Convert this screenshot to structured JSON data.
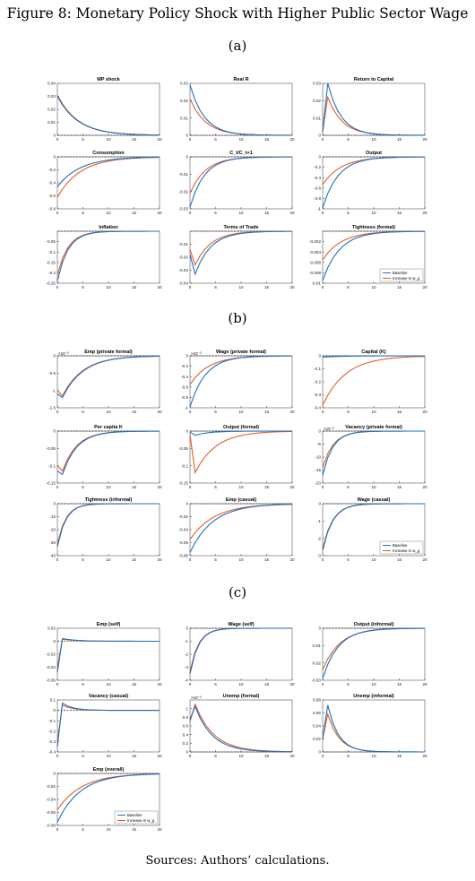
{
  "figure_title": "Figure 8: Monetary Policy Shock with Higher Public Sector Wage",
  "sources": "Sources: Authors’ calculations.",
  "colors": {
    "baseline": "#1f6fbf",
    "increase": "#e0602a",
    "axis": "#333333",
    "zero": "#000000"
  },
  "legend": {
    "baseline": "Baseline",
    "increase": "Increase in w_g"
  },
  "panels": [
    {
      "label": "(a)",
      "charts": [
        {
          "title": "MP shock",
          "ylim": [
            0,
            0.04
          ],
          "yticks": [
            "0",
            "0.01",
            "0.02",
            "0.03",
            "0.04"
          ],
          "exp": "",
          "base": {
            "type": "decay",
            "v0": 0.03,
            "r": 0.78,
            "peak": null
          },
          "inc": {
            "type": "decay",
            "v0": 0.031,
            "r": 0.78,
            "peak": null
          }
        },
        {
          "title": "Real R",
          "ylim": [
            0,
            0.03
          ],
          "yticks": [
            "0",
            "0.01",
            "0.02",
            "0.03"
          ],
          "exp": "",
          "base": {
            "type": "decay",
            "v0": 0.029,
            "r": 0.7,
            "peak": null
          },
          "inc": {
            "type": "decay",
            "v0": 0.021,
            "r": 0.72,
            "peak": null
          }
        },
        {
          "title": "Return to Capital",
          "ylim": [
            0,
            0.03
          ],
          "yticks": [
            "0",
            "0.01",
            "0.02",
            "0.03"
          ],
          "exp": "",
          "base": {
            "type": "hump",
            "v0": 0.002,
            "peak": 0.03,
            "r": 0.68
          },
          "inc": {
            "type": "hump",
            "v0": 0.002,
            "peak": 0.022,
            "r": 0.7
          }
        },
        {
          "title": "Consumption",
          "ylim": [
            -0.8,
            0
          ],
          "yticks": [
            "-0.8",
            "-0.6",
            "-0.4",
            "-0.2",
            "0"
          ],
          "exp": "",
          "base": {
            "type": "decay",
            "v0": -0.46,
            "r": 0.8,
            "peak": null
          },
          "inc": {
            "type": "decay",
            "v0": -0.62,
            "r": 0.8,
            "peak": null
          }
        },
        {
          "title": "C_t/C_t+1",
          "ylim": [
            -0.03,
            0
          ],
          "yticks": [
            "-0.03",
            "-0.02",
            "-0.01",
            "0"
          ],
          "exp": "",
          "base": {
            "type": "decay",
            "v0": -0.029,
            "r": 0.7,
            "peak": null
          },
          "inc": {
            "type": "decay",
            "v0": -0.021,
            "r": 0.72,
            "peak": null
          }
        },
        {
          "title": "Output",
          "ylim": [
            -1,
            0
          ],
          "yticks": [
            "-1",
            "-0.8",
            "-0.6",
            "-0.4",
            "-0.2",
            "0"
          ],
          "exp": "",
          "base": {
            "type": "decay",
            "v0": -0.98,
            "r": 0.72,
            "peak": null
          },
          "inc": {
            "type": "decay",
            "v0": -0.53,
            "r": 0.76,
            "peak": null
          }
        },
        {
          "title": "Inflation",
          "ylim": [
            -0.25,
            0
          ],
          "yticks": [
            "-0.25",
            "-0.2",
            "-0.15",
            "-0.1",
            "-0.05"
          ],
          "exp": "",
          "base": {
            "type": "decay",
            "v0": -0.24,
            "r": 0.62,
            "peak": null
          },
          "inc": {
            "type": "decay",
            "v0": -0.21,
            "r": 0.62,
            "peak": null
          }
        },
        {
          "title": "Terms of Trade",
          "ylim": [
            -0.04,
            0
          ],
          "yticks": [
            "-0.04",
            "-0.03",
            "-0.02",
            "-0.01"
          ],
          "exp": "",
          "base": {
            "type": "hump",
            "v0": -0.018,
            "peak": -0.033,
            "r": 0.72
          },
          "inc": {
            "type": "hump",
            "v0": -0.014,
            "peak": -0.026,
            "r": 0.72
          }
        },
        {
          "title": "Tightness (formal)",
          "ylim": [
            -0.01,
            0
          ],
          "yticks": [
            "-0.01",
            "-0.008",
            "-0.006",
            "-0.004",
            "-0.002"
          ],
          "exp": "",
          "legend": "bottom-right",
          "base": {
            "type": "decay",
            "v0": -0.0095,
            "r": 0.74,
            "peak": null
          },
          "inc": {
            "type": "decay",
            "v0": -0.0055,
            "r": 0.76,
            "peak": null
          }
        }
      ]
    },
    {
      "label": "(b)",
      "charts": [
        {
          "title": "Emp (private formal)",
          "ylim": [
            -1.5,
            0
          ],
          "yticks": [
            "-1.5",
            "-1",
            "-0.5",
            "0"
          ],
          "exp": "×10⁻³",
          "base": {
            "type": "hump",
            "v0": -1.1,
            "peak": -1.2,
            "r": 0.78
          },
          "inc": {
            "type": "hump",
            "v0": -1.0,
            "peak": -1.15,
            "r": 0.78
          }
        },
        {
          "title": "Wage (private formal)",
          "ylim": [
            -1,
            0
          ],
          "yticks": [
            "-1",
            "-0.8",
            "-0.6",
            "-0.4",
            "-0.2",
            "0"
          ],
          "exp": "×10⁻³",
          "base": {
            "type": "decay",
            "v0": -0.98,
            "r": 0.72,
            "peak": null
          },
          "inc": {
            "type": "decay",
            "v0": -0.55,
            "r": 0.76,
            "peak": null
          }
        },
        {
          "title": "Capital (K)",
          "ylim": [
            -0.4,
            0
          ],
          "yticks": [
            "-0.4",
            "-0.3",
            "-0.2",
            "-0.1",
            "0"
          ],
          "exp": "",
          "base": {
            "type": "decay",
            "v0": -0.01,
            "r": 0.8,
            "peak": null
          },
          "inc": {
            "type": "decay",
            "v0": -0.38,
            "r": 0.8,
            "peak": null
          }
        },
        {
          "title": "Per capita K",
          "ylim": [
            -0.15,
            0
          ],
          "yticks": [
            "-0.15",
            "-0.1",
            "-0.05",
            "0"
          ],
          "exp": "",
          "base": {
            "type": "hump",
            "v0": -0.115,
            "peak": -0.125,
            "r": 0.7
          },
          "inc": {
            "type": "hump",
            "v0": -0.1,
            "peak": -0.115,
            "r": 0.7
          }
        },
        {
          "title": "Output (formal)",
          "ylim": [
            -0.15,
            0
          ],
          "yticks": [
            "-0.15",
            "-0.1",
            "-0.05",
            "0"
          ],
          "exp": "",
          "base": {
            "type": "hump",
            "v0": -0.003,
            "peak": -0.012,
            "r": 0.7
          },
          "inc": {
            "type": "hump",
            "v0": -0.01,
            "peak": -0.12,
            "r": 0.78
          }
        },
        {
          "title": "Vacancy (private formal)",
          "ylim": [
            -20,
            0
          ],
          "yticks": [
            "-20",
            "-15",
            "-10",
            "-5",
            "0"
          ],
          "exp": "×10⁻³",
          "base": {
            "type": "decay",
            "v0": -17,
            "r": 0.6,
            "peak": null
          },
          "inc": {
            "type": "decay",
            "v0": -14,
            "r": 0.62,
            "peak": null
          }
        },
        {
          "title": "Tightness (informal)",
          "ylim": [
            -40,
            0
          ],
          "yticks": [
            "-40",
            "-30",
            "-20",
            "-10",
            "0"
          ],
          "exp": "",
          "base": {
            "type": "decay",
            "v0": -33,
            "r": 0.55,
            "peak": null
          },
          "inc": {
            "type": "decay",
            "v0": -31,
            "r": 0.55,
            "peak": null
          }
        },
        {
          "title": "Emp (casual)",
          "ylim": [
            -0.08,
            0
          ],
          "yticks": [
            "-0.08",
            "-0.06",
            "-0.04",
            "-0.02",
            "0"
          ],
          "exp": "",
          "base": {
            "type": "decay",
            "v0": -0.075,
            "r": 0.8,
            "peak": null
          },
          "inc": {
            "type": "decay",
            "v0": -0.055,
            "r": 0.81,
            "peak": null
          }
        },
        {
          "title": "Wage (casual)",
          "ylim": [
            -3,
            0
          ],
          "yticks": [
            "-3",
            "-2",
            "-1",
            "0"
          ],
          "exp": "",
          "legend": "bottom-right",
          "base": {
            "type": "decay",
            "v0": -2.7,
            "r": 0.6,
            "peak": null
          },
          "inc": {
            "type": "decay",
            "v0": -2.6,
            "r": 0.6,
            "peak": null
          }
        }
      ]
    },
    {
      "label": "(c)",
      "charts": [
        {
          "title": "Emp (self)",
          "ylim": [
            -0.06,
            0.02
          ],
          "yticks": [
            "-0.06",
            "-0.04",
            "-0.02",
            "0",
            "0.02"
          ],
          "exp": "",
          "base": {
            "type": "over",
            "v0": -0.048,
            "peak": 0.004,
            "r": 0.7
          },
          "inc": {
            "type": "over",
            "v0": -0.04,
            "peak": 0.003,
            "r": 0.7
          }
        },
        {
          "title": "Wage (self)",
          "ylim": [
            -4,
            0
          ],
          "yticks": [
            "-4",
            "-3",
            "-2",
            "-1",
            "0"
          ],
          "exp": "",
          "base": {
            "type": "decay",
            "v0": -3.5,
            "r": 0.55,
            "peak": null
          },
          "inc": {
            "type": "decay",
            "v0": -3.3,
            "r": 0.55,
            "peak": null
          }
        },
        {
          "title": "Output (informal)",
          "ylim": [
            -0.03,
            0
          ],
          "yticks": [
            "-0.03",
            "-0.02",
            "-0.01",
            "0"
          ],
          "exp": "",
          "base": {
            "type": "decay",
            "v0": -0.029,
            "r": 0.72,
            "peak": null
          },
          "inc": {
            "type": "decay",
            "v0": -0.024,
            "r": 0.74,
            "peak": null
          }
        },
        {
          "title": "Vacancy (casual)",
          "ylim": [
            -0.4,
            0.1
          ],
          "yticks": [
            "-0.4",
            "-0.3",
            "-0.2",
            "-0.1",
            "0",
            "0.1"
          ],
          "exp": "",
          "base": {
            "type": "over",
            "v0": -0.35,
            "peak": 0.07,
            "r": 0.6
          },
          "inc": {
            "type": "over",
            "v0": -0.3,
            "peak": 0.05,
            "r": 0.6
          }
        },
        {
          "title": "Unemp (formal)",
          "ylim": [
            0,
            1.2
          ],
          "yticks": [
            "0",
            "0.2",
            "0.4",
            "0.6",
            "0.8",
            "1"
          ],
          "exp": "×10⁻³",
          "base": {
            "type": "hump",
            "v0": 0.75,
            "peak": 1.05,
            "r": 0.74
          },
          "inc": {
            "type": "hump",
            "v0": 0.7,
            "peak": 1.1,
            "r": 0.76
          }
        },
        {
          "title": "Unemp (informal)",
          "ylim": [
            0,
            0.08
          ],
          "yticks": [
            "0",
            "0.02",
            "0.04",
            "0.06",
            "0.08"
          ],
          "exp": "",
          "base": {
            "type": "hump",
            "v0": 0.02,
            "peak": 0.072,
            "r": 0.62
          },
          "inc": {
            "type": "hump",
            "v0": 0.02,
            "peak": 0.058,
            "r": 0.64
          }
        },
        {
          "title": "Emp (overall)",
          "ylim": [
            -0.08,
            0
          ],
          "yticks": [
            "-0.08",
            "-0.06",
            "-0.04",
            "-0.02",
            "0"
          ],
          "exp": "",
          "legend": "bottom-right",
          "base": {
            "type": "decay",
            "v0": -0.075,
            "r": 0.8,
            "peak": null
          },
          "inc": {
            "type": "decay",
            "v0": -0.056,
            "r": 0.81,
            "peak": null
          }
        }
      ]
    }
  ],
  "chart_data": {
    "type": "line",
    "x": [
      0,
      1,
      2,
      3,
      4,
      5,
      6,
      7,
      8,
      9,
      10,
      11,
      12,
      13,
      14,
      15,
      16,
      17,
      18,
      19,
      20
    ],
    "xticks": [
      "0",
      "5",
      "10",
      "15",
      "20"
    ],
    "series_names": [
      "Baseline",
      "Increase in w_g"
    ]
  }
}
